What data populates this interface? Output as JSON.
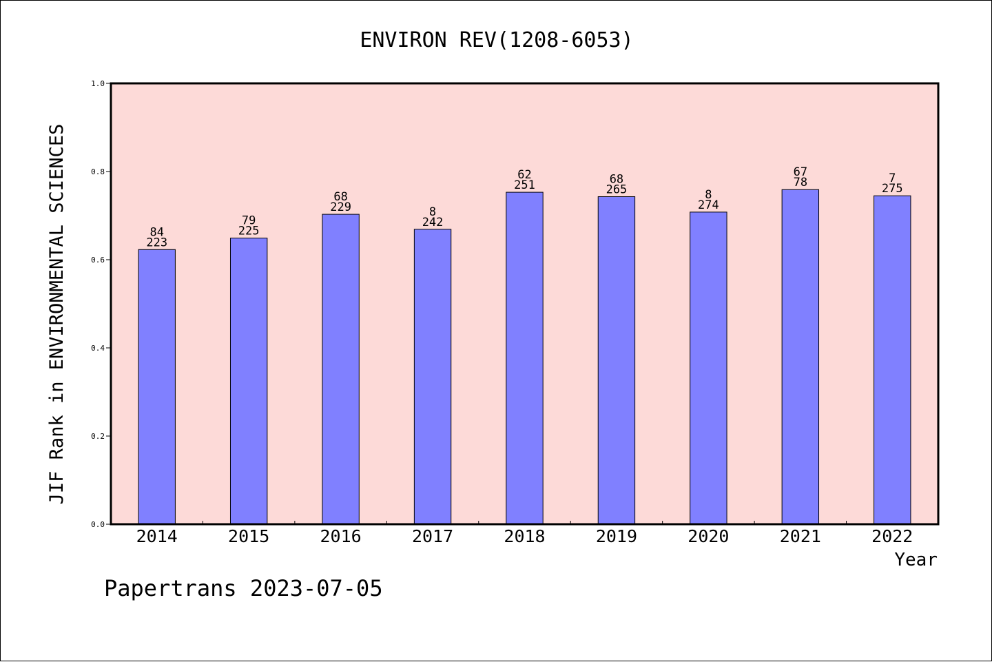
{
  "chart_data": {
    "type": "bar",
    "title": "ENVIRON REV(1208-6053)",
    "xlabel": "Year",
    "ylabel": "JIF Rank in ENVIRONMENTAL SCIENCES",
    "ylim": [
      0,
      1
    ],
    "yticks": [
      "0.0",
      "0.2",
      "0.4",
      "0.6",
      "0.8",
      "1.0"
    ],
    "categories": [
      "2014",
      "2015",
      "2016",
      "2017",
      "2018",
      "2019",
      "2020",
      "2021",
      "2022"
    ],
    "values": [
      0.623,
      0.649,
      0.703,
      0.669,
      0.753,
      0.743,
      0.708,
      0.759,
      0.745
    ],
    "rank": [
      "84",
      "79",
      "68",
      "8",
      "62",
      "68",
      "8",
      "67",
      "7"
    ],
    "total": [
      "223",
      "225",
      "229",
      "242",
      "251",
      "265",
      "274",
      "78",
      "275"
    ],
    "grid": false,
    "colors": {
      "plot_bg": "#fddad8",
      "bar": "#8080ff",
      "bar_edge": "#000000"
    }
  },
  "footer": "Papertrans 2023-07-05"
}
